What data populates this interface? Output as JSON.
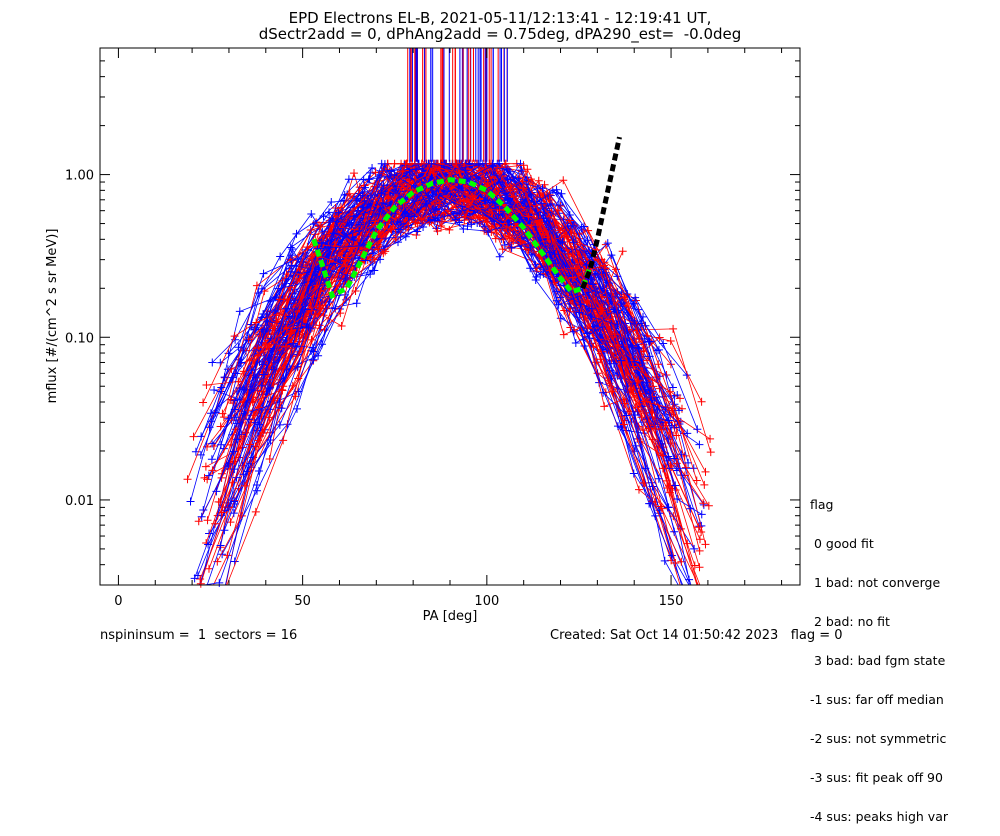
{
  "title_line1": "EPD Electrons EL-B, 2021-05-11/12:13:41 - 12:19:41 UT,",
  "title_line2": "dSectr2add = 0, dPhAng2add = 0.75deg, dPA290_est=  -0.0deg",
  "legend": {
    "title": "flag",
    "items": [
      " 0 good fit",
      " 1 bad: not converge",
      " 2 bad: no fit",
      " 3 bad: bad fgm state",
      "-1 sus: far off median",
      "-2 sus: not symmetric",
      "-3 sus: fit peak off 90",
      "-4 sus: peaks high var"
    ]
  },
  "footer": {
    "left": "nspininsum =  1  sectors = 16",
    "right": "Created: Sat Oct 14 01:50:42 2023   flag = 0"
  },
  "chart_data": {
    "type": "scatter",
    "xlabel": "PA [deg]",
    "ylabel": "mflux [#/(cm^2 s sr MeV)]",
    "xlim": [
      -5,
      185
    ],
    "ylim": [
      0.003,
      6
    ],
    "yscale": "log",
    "xticks": [
      {
        "value": 0,
        "label": "0"
      },
      {
        "value": 50,
        "label": "50"
      },
      {
        "value": 100,
        "label": "100"
      },
      {
        "value": 150,
        "label": "150"
      }
    ],
    "yticks": [
      {
        "value": 0.01,
        "label": "0.01"
      },
      {
        "value": 0.1,
        "label": "0.10"
      },
      {
        "value": 1.0,
        "label": "1.00"
      }
    ],
    "sweeps": 150,
    "series": [
      {
        "color": "#ff0000",
        "marker": "+",
        "approx_peak_pa": 90,
        "approx_peak_flux": 0.9
      },
      {
        "color": "#0000ff",
        "marker": "+",
        "approx_peak_pa": 90,
        "approx_peak_flux": 0.9
      }
    ],
    "fit_curve": {
      "color": "#00ff00",
      "style": "dashed",
      "points": [
        [
          53,
          0.4
        ],
        [
          56,
          0.25
        ],
        [
          58,
          0.18
        ],
        [
          62,
          0.2
        ],
        [
          66,
          0.3
        ],
        [
          70,
          0.45
        ],
        [
          75,
          0.63
        ],
        [
          80,
          0.78
        ],
        [
          85,
          0.88
        ],
        [
          90,
          0.93
        ],
        [
          95,
          0.9
        ],
        [
          100,
          0.8
        ],
        [
          105,
          0.63
        ],
        [
          110,
          0.47
        ],
        [
          115,
          0.33
        ],
        [
          120,
          0.23
        ],
        [
          123,
          0.19
        ],
        [
          126,
          0.2
        ],
        [
          128,
          0.27
        ]
      ]
    },
    "extrapolation_curve": {
      "color": "#000000",
      "style": "dashed",
      "points": [
        [
          126,
          0.2
        ],
        [
          128,
          0.26
        ],
        [
          130,
          0.4
        ],
        [
          132,
          0.65
        ],
        [
          134,
          1.05
        ],
        [
          136,
          1.7
        ]
      ]
    }
  }
}
